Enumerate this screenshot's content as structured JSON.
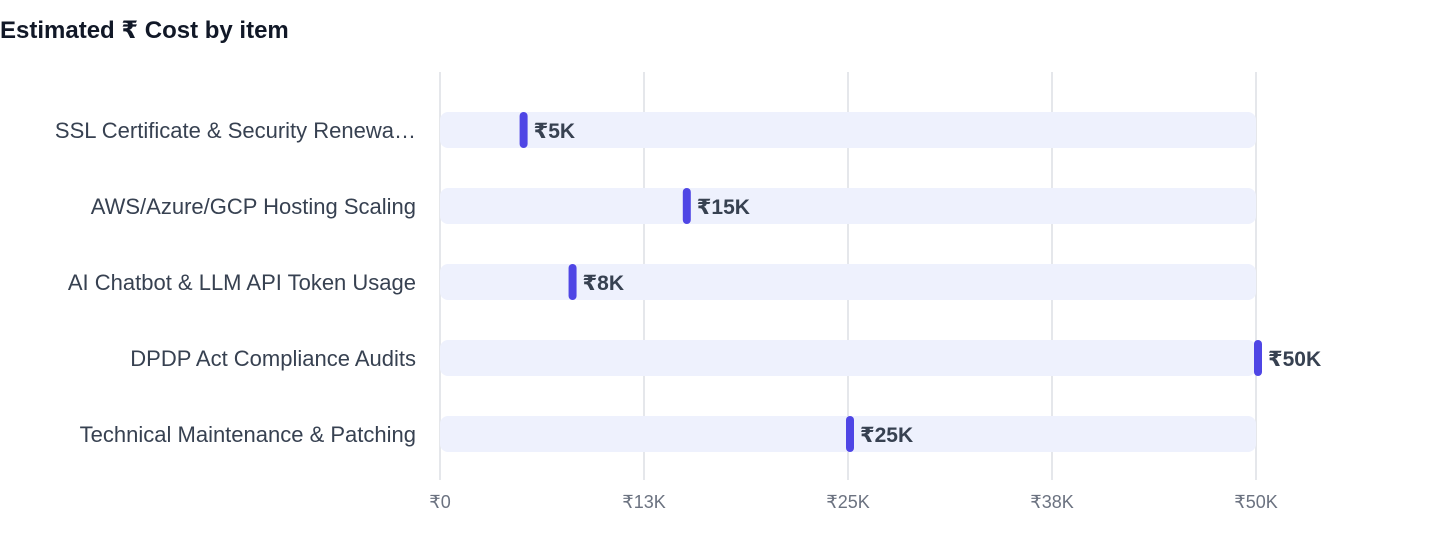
{
  "chart_data": {
    "type": "bar",
    "title": "Estimated ₹ Cost by item",
    "categories": [
      "SSL Certificate & Security Renewa…",
      "AWS/Azure/GCP Hosting Scaling",
      "AI Chatbot & LLM API Token Usage",
      "DPDP Act Compliance Audits",
      "Technical Maintenance & Patching"
    ],
    "values": [
      5000,
      15000,
      8000,
      50000,
      25000
    ],
    "value_labels": [
      "₹5K",
      "₹15K",
      "₹8K",
      "₹50K",
      "₹25K"
    ],
    "xlim": [
      0,
      50000
    ],
    "x_ticks": [
      0,
      12500,
      25000,
      37500,
      50000
    ],
    "x_tick_labels": [
      "₹0",
      "₹13K",
      "₹25K",
      "₹38K",
      "₹50K"
    ],
    "orientation": "horizontal",
    "grid": true,
    "colors": {
      "marker": "#4f46e5",
      "track": "#eef1fd",
      "grid": "#e5e7eb"
    }
  }
}
